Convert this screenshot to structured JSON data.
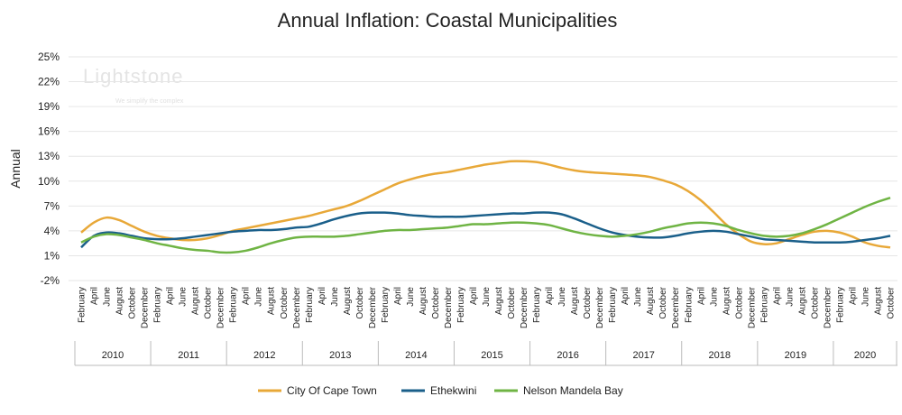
{
  "chart_data": {
    "type": "line",
    "title": "Annual Inflation: Coastal Municipalities",
    "y_label": "Annual",
    "watermark": {
      "brand": "Lightstone",
      "tagline": "We simplify the complex"
    },
    "categories": [
      "February",
      "April",
      "June",
      "August",
      "October",
      "December",
      "February",
      "April",
      "June",
      "August",
      "October",
      "December",
      "February",
      "April",
      "June",
      "August",
      "October",
      "December",
      "February",
      "April",
      "June",
      "August",
      "October",
      "December",
      "February",
      "April",
      "June",
      "August",
      "October",
      "December",
      "February",
      "April",
      "June",
      "August",
      "October",
      "December",
      "February",
      "April",
      "June",
      "August",
      "October",
      "December",
      "February",
      "April",
      "June",
      "August",
      "October",
      "December",
      "February",
      "April",
      "June",
      "August",
      "October",
      "December",
      "February",
      "April",
      "June",
      "August",
      "October",
      "December",
      "February",
      "April",
      "June",
      "August",
      "October"
    ],
    "years": [
      "2010",
      "2011",
      "2012",
      "2013",
      "2014",
      "2015",
      "2016",
      "2017",
      "2018",
      "2019",
      "2020"
    ],
    "series": [
      {
        "name": "City Of Cape Town",
        "color": "#e8a838",
        "values": [
          3.8,
          5.0,
          5.6,
          5.3,
          4.6,
          3.9,
          3.4,
          3.1,
          2.9,
          2.9,
          3.1,
          3.5,
          4.0,
          4.3,
          4.6,
          4.9,
          5.2,
          5.5,
          5.8,
          6.2,
          6.6,
          7.0,
          7.6,
          8.3,
          9.0,
          9.7,
          10.2,
          10.6,
          10.9,
          11.1,
          11.4,
          11.7,
          12.0,
          12.2,
          12.4,
          12.4,
          12.3,
          12.0,
          11.6,
          11.3,
          11.1,
          11.0,
          10.9,
          10.8,
          10.7,
          10.5,
          10.1,
          9.6,
          8.8,
          7.7,
          6.3,
          4.8,
          3.6,
          2.7,
          2.4,
          2.5,
          3.0,
          3.5,
          3.9,
          4.0,
          3.8,
          3.3,
          2.6,
          2.2,
          2.0
        ]
      },
      {
        "name": "Ethekwini",
        "color": "#1a5f8a",
        "values": [
          2.0,
          3.4,
          3.8,
          3.7,
          3.4,
          3.1,
          3.0,
          3.0,
          3.1,
          3.3,
          3.5,
          3.7,
          3.9,
          4.0,
          4.1,
          4.1,
          4.2,
          4.4,
          4.5,
          4.9,
          5.4,
          5.8,
          6.1,
          6.2,
          6.2,
          6.1,
          5.9,
          5.8,
          5.7,
          5.7,
          5.7,
          5.8,
          5.9,
          6.0,
          6.1,
          6.1,
          6.2,
          6.2,
          6.0,
          5.5,
          4.9,
          4.3,
          3.8,
          3.5,
          3.3,
          3.2,
          3.2,
          3.4,
          3.7,
          3.9,
          4.0,
          3.9,
          3.6,
          3.3,
          3.0,
          2.9,
          2.8,
          2.7,
          2.6,
          2.6,
          2.6,
          2.7,
          2.9,
          3.1,
          3.4
        ]
      },
      {
        "name": "Nelson Mandela Bay",
        "color": "#6fb444",
        "values": [
          2.6,
          3.3,
          3.6,
          3.5,
          3.2,
          2.9,
          2.5,
          2.2,
          1.9,
          1.7,
          1.6,
          1.4,
          1.4,
          1.6,
          2.0,
          2.5,
          2.9,
          3.2,
          3.3,
          3.3,
          3.3,
          3.4,
          3.6,
          3.8,
          4.0,
          4.1,
          4.1,
          4.2,
          4.3,
          4.4,
          4.6,
          4.8,
          4.8,
          4.9,
          5.0,
          5.0,
          4.9,
          4.7,
          4.3,
          3.9,
          3.6,
          3.4,
          3.3,
          3.4,
          3.6,
          3.9,
          4.3,
          4.6,
          4.9,
          5.0,
          4.9,
          4.6,
          4.1,
          3.7,
          3.4,
          3.3,
          3.4,
          3.7,
          4.2,
          4.8,
          5.5,
          6.2,
          6.9,
          7.5,
          8.0
        ]
      }
    ],
    "ylim": [
      -2,
      25
    ],
    "yticks": [
      {
        "value": -2,
        "label": "-2%"
      },
      {
        "value": 1,
        "label": "1%"
      },
      {
        "value": 4,
        "label": "4%"
      },
      {
        "value": 7,
        "label": "7%"
      },
      {
        "value": 10,
        "label": "10%"
      },
      {
        "value": 13,
        "label": "13%"
      },
      {
        "value": 16,
        "label": "16%"
      },
      {
        "value": 19,
        "label": "19%"
      },
      {
        "value": 22,
        "label": "22%"
      },
      {
        "value": 25,
        "label": "25%"
      }
    ],
    "grid": true,
    "legend": "bottom"
  }
}
